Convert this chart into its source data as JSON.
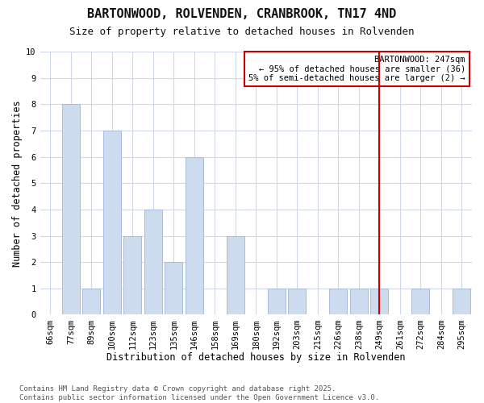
{
  "title_line1": "BARTONWOOD, ROLVENDEN, CRANBROOK, TN17 4ND",
  "title_line2": "Size of property relative to detached houses in Rolvenden",
  "xlabel": "Distribution of detached houses by size in Rolvenden",
  "ylabel": "Number of detached properties",
  "categories": [
    "66sqm",
    "77sqm",
    "89sqm",
    "100sqm",
    "112sqm",
    "123sqm",
    "135sqm",
    "146sqm",
    "158sqm",
    "169sqm",
    "180sqm",
    "192sqm",
    "203sqm",
    "215sqm",
    "226sqm",
    "238sqm",
    "249sqm",
    "261sqm",
    "272sqm",
    "284sqm",
    "295sqm"
  ],
  "values": [
    0,
    8,
    1,
    7,
    3,
    4,
    2,
    6,
    0,
    3,
    0,
    1,
    1,
    0,
    1,
    1,
    1,
    0,
    1,
    0,
    1
  ],
  "bar_color": "#ccdcee",
  "bar_edgecolor": "#aabbdd",
  "vline_x_index": 16,
  "vline_color": "#cc0000",
  "annotation_text": "BARTONWOOD: 247sqm\n← 95% of detached houses are smaller (36)\n5% of semi-detached houses are larger (2) →",
  "annotation_box_edgecolor": "#cc0000",
  "ylim_max": 10,
  "yticks": [
    0,
    1,
    2,
    3,
    4,
    5,
    6,
    7,
    8,
    9,
    10
  ],
  "footnote": "Contains HM Land Registry data © Crown copyright and database right 2025.\nContains public sector information licensed under the Open Government Licence v3.0.",
  "background_color": "#ffffff",
  "grid_color": "#d0d8e8",
  "title1_fontsize": 11,
  "title2_fontsize": 9,
  "tick_fontsize": 7.5,
  "label_fontsize": 8.5,
  "annot_fontsize": 7.5,
  "footnote_fontsize": 6.5
}
